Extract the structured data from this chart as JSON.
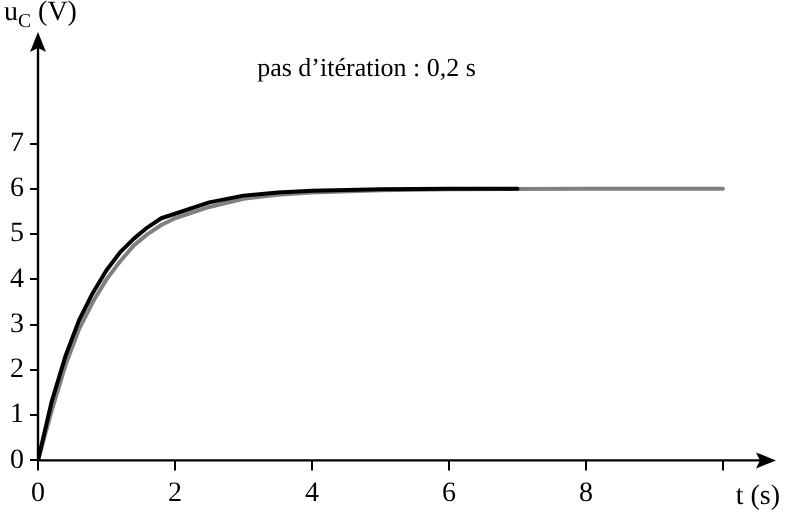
{
  "chart_data": {
    "type": "line",
    "xlabel": "t (s)",
    "ylabel": "u$_{C}$ (V)",
    "annotations": [
      "pas d’itération : 0,2 s"
    ],
    "series": [
      {
        "color": "#000000",
        "x": [
          0,
          0.2,
          0.4,
          0.6,
          0.8,
          1,
          1.2,
          1.4,
          1.6,
          1.8,
          2,
          2.5,
          3,
          3.5,
          4,
          5,
          6,
          7
        ],
        "values": [
          0,
          1.3,
          2.3,
          3.1,
          3.7,
          4.2,
          4.6,
          4.9,
          5.15,
          5.35,
          5.45,
          5.7,
          5.85,
          5.92,
          5.96,
          5.99,
          6,
          6
        ]
      },
      {
        "color": "#808080",
        "x": [
          0,
          0.2,
          0.4,
          0.6,
          0.8,
          1,
          1.2,
          1.4,
          1.6,
          1.8,
          2,
          2.5,
          3,
          3.5,
          4,
          5,
          6,
          8,
          10
        ],
        "values": [
          0,
          1.1,
          2.1,
          2.9,
          3.5,
          4,
          4.4,
          4.75,
          5,
          5.2,
          5.35,
          5.6,
          5.78,
          5.87,
          5.92,
          5.97,
          5.99,
          6,
          6
        ]
      }
    ],
    "xlim": [
      0,
      10.6
    ],
    "ylim": [
      0,
      9.2
    ],
    "xticks": [
      0,
      2,
      4,
      6,
      8,
      {
        "value": 10,
        "label": null
      }
    ],
    "yticks": [
      0,
      1,
      2,
      3,
      4,
      5,
      6,
      7
    ],
    "grid": false,
    "legend": false,
    "marker": "none",
    "line_style": "solid"
  }
}
